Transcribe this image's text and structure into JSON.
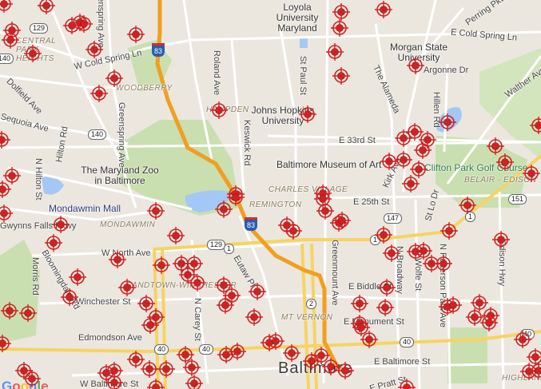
{
  "map": {
    "city_label": "Baltimore",
    "provider_logo": "Google",
    "marker_icon": "crosshair-target-icon",
    "marker_color": "#d42020",
    "colors": {
      "land": "#ebe7df",
      "park": "#c9dfaf",
      "water": "#a3c8f5",
      "highway": "#f29e20",
      "arterial": "#f7d361",
      "road": "#ffffff"
    },
    "points_of_interest": [
      {
        "name": "loyola",
        "label": "Loyola University Maryland"
      },
      {
        "name": "morgan-state",
        "label": "Morgan State University"
      },
      {
        "name": "johns-hopkins",
        "label": "Johns Hopkins University"
      },
      {
        "name": "museum",
        "label": "Baltimore Museum of Art"
      },
      {
        "name": "zoo",
        "label": "The Maryland Zoo in Baltimore"
      },
      {
        "name": "mondawmin-mall",
        "label": "Mondawmin Mall"
      },
      {
        "name": "golf",
        "label": "Clifton Park Golf Course"
      }
    ],
    "neighborhoods": [
      "CENTRAL PARK HEIGHTS",
      "WOODBERRY",
      "HAMPDEN",
      "CHARLES VILLAGE",
      "REMINGTON",
      "MONDAWMIN",
      "SANDTOWN-WINCHESTER",
      "MT VERNON",
      "BELAIR - EDISON",
      "HIGHLANDTOWN"
    ],
    "streets": [
      "Greenspring Ave",
      "W Cold Spring Ln",
      "Dolfield Ave",
      "Sequoia Ave",
      "Hilton Rd",
      "Roland Ave",
      "Keswick Rd",
      "St Paul St",
      "The Alameda",
      "Hillen Rd",
      "E Cold Spring Ln",
      "Argonne Dr",
      "Walther Ave",
      "E 33rd St",
      "Kirk Ave",
      "E 25th St",
      "St Lo Dr",
      "N Hilton St",
      "Gwynns Falls Pkwy",
      "W North Ave",
      "Bloomingdale Rd",
      "Morris Rd",
      "Winchester St",
      "N Carey St",
      "Eutaw Pl",
      "Greenmount Ave",
      "N Broadway",
      "N Wolfe St",
      "N Patterson Park Ave",
      "Edison Hwy",
      "E Biddle St",
      "E Monument St",
      "Edmondson Ave",
      "W Baltimore St",
      "E Baltimore St",
      "E Pratt St",
      "Perring Pkwy",
      "Greenspring Ave"
    ],
    "route_shields": [
      "83",
      "83",
      "129",
      "129",
      "140",
      "140",
      "147",
      "151",
      "1",
      "1",
      "1",
      "2",
      "40",
      "40",
      "40",
      "40"
    ]
  }
}
